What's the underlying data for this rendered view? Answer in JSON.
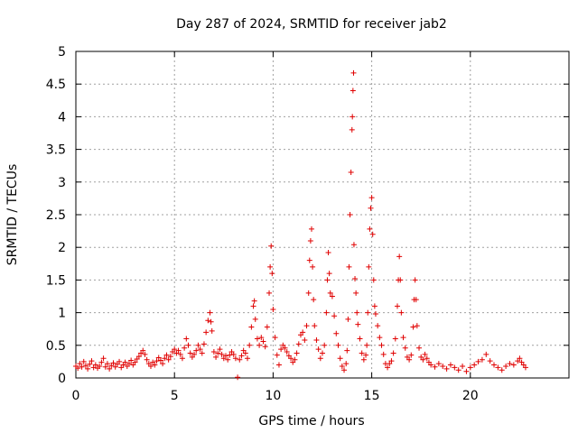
{
  "chart_data": {
    "type": "scatter",
    "title": "Day 287 of 2024, SRMTID for receiver jab2",
    "xlabel": "GPS time / hours",
    "ylabel": "SRMTID / TECUs",
    "xlim": [
      0,
      25
    ],
    "ylim": [
      0,
      5
    ],
    "xticks": [
      0,
      5,
      10,
      15,
      20
    ],
    "xtick_labels": [
      "0",
      "5",
      "10",
      "15",
      "20"
    ],
    "yticks": [
      0,
      0.5,
      1,
      1.5,
      2,
      2.5,
      3,
      3.5,
      4,
      4.5,
      5
    ],
    "ytick_labels": [
      "0",
      "0.5",
      "1",
      "1.5",
      "2",
      "2.5",
      "3",
      "3.5",
      "4",
      "4.5",
      "5"
    ],
    "grid": true,
    "marker": "+",
    "series_color": "#e00000",
    "series": [
      {
        "name": "SRMTID",
        "points": [
          [
            0.0,
            0.18
          ],
          [
            0.1,
            0.15
          ],
          [
            0.2,
            0.22
          ],
          [
            0.3,
            0.17
          ],
          [
            0.4,
            0.25
          ],
          [
            0.5,
            0.19
          ],
          [
            0.6,
            0.14
          ],
          [
            0.7,
            0.21
          ],
          [
            0.8,
            0.26
          ],
          [
            0.9,
            0.16
          ],
          [
            1.0,
            0.2
          ],
          [
            1.1,
            0.15
          ],
          [
            1.2,
            0.18
          ],
          [
            1.3,
            0.24
          ],
          [
            1.4,
            0.3
          ],
          [
            1.5,
            0.17
          ],
          [
            1.6,
            0.22
          ],
          [
            1.7,
            0.14
          ],
          [
            1.8,
            0.19
          ],
          [
            1.9,
            0.23
          ],
          [
            2.0,
            0.17
          ],
          [
            2.1,
            0.21
          ],
          [
            2.2,
            0.25
          ],
          [
            2.3,
            0.16
          ],
          [
            2.4,
            0.2
          ],
          [
            2.5,
            0.24
          ],
          [
            2.6,
            0.18
          ],
          [
            2.7,
            0.22
          ],
          [
            2.8,
            0.27
          ],
          [
            2.9,
            0.2
          ],
          [
            3.0,
            0.24
          ],
          [
            3.1,
            0.29
          ],
          [
            3.2,
            0.33
          ],
          [
            3.3,
            0.38
          ],
          [
            3.4,
            0.42
          ],
          [
            3.5,
            0.36
          ],
          [
            3.6,
            0.28
          ],
          [
            3.7,
            0.22
          ],
          [
            3.8,
            0.18
          ],
          [
            3.9,
            0.24
          ],
          [
            4.0,
            0.2
          ],
          [
            4.1,
            0.26
          ],
          [
            4.2,
            0.31
          ],
          [
            4.3,
            0.27
          ],
          [
            4.4,
            0.22
          ],
          [
            4.5,
            0.3
          ],
          [
            4.6,
            0.35
          ],
          [
            4.7,
            0.28
          ],
          [
            4.8,
            0.33
          ],
          [
            4.9,
            0.4
          ],
          [
            5.0,
            0.44
          ],
          [
            5.1,
            0.38
          ],
          [
            5.2,
            0.42
          ],
          [
            5.3,
            0.36
          ],
          [
            5.4,
            0.3
          ],
          [
            5.5,
            0.46
          ],
          [
            5.6,
            0.6
          ],
          [
            5.7,
            0.5
          ],
          [
            5.8,
            0.38
          ],
          [
            5.9,
            0.32
          ],
          [
            6.0,
            0.36
          ],
          [
            6.1,
            0.42
          ],
          [
            6.2,
            0.5
          ],
          [
            6.3,
            0.44
          ],
          [
            6.4,
            0.38
          ],
          [
            6.5,
            0.52
          ],
          [
            6.6,
            0.7
          ],
          [
            6.7,
            0.88
          ],
          [
            6.8,
            1.0
          ],
          [
            6.85,
            0.86
          ],
          [
            6.9,
            0.72
          ],
          [
            7.0,
            0.4
          ],
          [
            7.1,
            0.32
          ],
          [
            7.2,
            0.38
          ],
          [
            7.3,
            0.44
          ],
          [
            7.4,
            0.36
          ],
          [
            7.5,
            0.3
          ],
          [
            7.6,
            0.34
          ],
          [
            7.7,
            0.28
          ],
          [
            7.8,
            0.35
          ],
          [
            7.9,
            0.4
          ],
          [
            8.0,
            0.36
          ],
          [
            8.1,
            0.3
          ],
          [
            8.2,
            0.01
          ],
          [
            8.3,
            0.28
          ],
          [
            8.4,
            0.34
          ],
          [
            8.5,
            0.42
          ],
          [
            8.6,
            0.38
          ],
          [
            8.7,
            0.3
          ],
          [
            8.8,
            0.5
          ],
          [
            8.9,
            0.78
          ],
          [
            9.0,
            1.1
          ],
          [
            9.05,
            1.18
          ],
          [
            9.1,
            0.9
          ],
          [
            9.2,
            0.6
          ],
          [
            9.3,
            0.5
          ],
          [
            9.4,
            0.62
          ],
          [
            9.5,
            0.56
          ],
          [
            9.6,
            0.48
          ],
          [
            9.7,
            0.78
          ],
          [
            9.8,
            1.3
          ],
          [
            9.85,
            1.7
          ],
          [
            9.9,
            2.02
          ],
          [
            9.95,
            1.6
          ],
          [
            10.0,
            1.05
          ],
          [
            10.1,
            0.62
          ],
          [
            10.2,
            0.35
          ],
          [
            10.3,
            0.2
          ],
          [
            10.4,
            0.44
          ],
          [
            10.5,
            0.5
          ],
          [
            10.6,
            0.46
          ],
          [
            10.7,
            0.4
          ],
          [
            10.8,
            0.34
          ],
          [
            10.9,
            0.3
          ],
          [
            11.0,
            0.24
          ],
          [
            11.1,
            0.28
          ],
          [
            11.2,
            0.38
          ],
          [
            11.3,
            0.52
          ],
          [
            11.4,
            0.66
          ],
          [
            11.5,
            0.7
          ],
          [
            11.6,
            0.58
          ],
          [
            11.7,
            0.8
          ],
          [
            11.8,
            1.3
          ],
          [
            11.85,
            1.8
          ],
          [
            11.9,
            2.1
          ],
          [
            11.95,
            2.28
          ],
          [
            12.0,
            1.7
          ],
          [
            12.05,
            1.2
          ],
          [
            12.1,
            0.8
          ],
          [
            12.2,
            0.58
          ],
          [
            12.3,
            0.44
          ],
          [
            12.4,
            0.3
          ],
          [
            12.5,
            0.38
          ],
          [
            12.6,
            0.5
          ],
          [
            12.7,
            1.0
          ],
          [
            12.75,
            1.5
          ],
          [
            12.8,
            1.92
          ],
          [
            12.85,
            1.6
          ],
          [
            12.9,
            1.3
          ],
          [
            13.0,
            1.25
          ],
          [
            13.1,
            0.95
          ],
          [
            13.2,
            0.68
          ],
          [
            13.3,
            0.5
          ],
          [
            13.4,
            0.3
          ],
          [
            13.5,
            0.18
          ],
          [
            13.6,
            0.12
          ],
          [
            13.7,
            0.22
          ],
          [
            13.75,
            0.42
          ],
          [
            13.8,
            0.9
          ],
          [
            13.85,
            1.7
          ],
          [
            13.9,
            2.5
          ],
          [
            13.95,
            3.15
          ],
          [
            14.0,
            3.8
          ],
          [
            14.02,
            4.0
          ],
          [
            14.05,
            4.4
          ],
          [
            14.08,
            4.67
          ],
          [
            14.1,
            2.04
          ],
          [
            14.15,
            1.52
          ],
          [
            14.2,
            1.3
          ],
          [
            14.25,
            1.0
          ],
          [
            14.3,
            0.82
          ],
          [
            14.4,
            0.6
          ],
          [
            14.5,
            0.38
          ],
          [
            14.6,
            0.28
          ],
          [
            14.7,
            0.35
          ],
          [
            14.75,
            0.5
          ],
          [
            14.8,
            1.0
          ],
          [
            14.85,
            1.7
          ],
          [
            14.9,
            2.28
          ],
          [
            14.95,
            2.6
          ],
          [
            15.0,
            2.76
          ],
          [
            15.05,
            2.2
          ],
          [
            15.1,
            1.5
          ],
          [
            15.15,
            1.1
          ],
          [
            15.2,
            0.98
          ],
          [
            15.3,
            0.8
          ],
          [
            15.4,
            0.62
          ],
          [
            15.5,
            0.5
          ],
          [
            15.6,
            0.36
          ],
          [
            15.7,
            0.22
          ],
          [
            15.8,
            0.16
          ],
          [
            15.9,
            0.22
          ],
          [
            16.0,
            0.26
          ],
          [
            16.1,
            0.38
          ],
          [
            16.2,
            0.6
          ],
          [
            16.3,
            1.1
          ],
          [
            16.35,
            1.5
          ],
          [
            16.4,
            1.86
          ],
          [
            16.45,
            1.5
          ],
          [
            16.5,
            1.0
          ],
          [
            16.6,
            0.62
          ],
          [
            16.7,
            0.46
          ],
          [
            16.8,
            0.32
          ],
          [
            16.9,
            0.28
          ],
          [
            17.0,
            0.35
          ],
          [
            17.1,
            0.78
          ],
          [
            17.15,
            1.2
          ],
          [
            17.2,
            1.5
          ],
          [
            17.25,
            1.2
          ],
          [
            17.3,
            0.8
          ],
          [
            17.4,
            0.46
          ],
          [
            17.5,
            0.32
          ],
          [
            17.6,
            0.28
          ],
          [
            17.7,
            0.36
          ],
          [
            17.8,
            0.3
          ],
          [
            17.9,
            0.24
          ],
          [
            18.0,
            0.2
          ],
          [
            18.2,
            0.17
          ],
          [
            18.4,
            0.22
          ],
          [
            18.6,
            0.18
          ],
          [
            18.8,
            0.14
          ],
          [
            19.0,
            0.2
          ],
          [
            19.2,
            0.16
          ],
          [
            19.4,
            0.12
          ],
          [
            19.6,
            0.18
          ],
          [
            19.8,
            0.1
          ],
          [
            20.0,
            0.16
          ],
          [
            20.2,
            0.2
          ],
          [
            20.4,
            0.25
          ],
          [
            20.6,
            0.28
          ],
          [
            20.8,
            0.36
          ],
          [
            21.0,
            0.26
          ],
          [
            21.2,
            0.2
          ],
          [
            21.4,
            0.16
          ],
          [
            21.6,
            0.12
          ],
          [
            21.8,
            0.18
          ],
          [
            22.0,
            0.22
          ],
          [
            22.2,
            0.2
          ],
          [
            22.4,
            0.26
          ],
          [
            22.5,
            0.3
          ],
          [
            22.6,
            0.24
          ],
          [
            22.7,
            0.2
          ],
          [
            22.8,
            0.16
          ]
        ]
      }
    ]
  }
}
